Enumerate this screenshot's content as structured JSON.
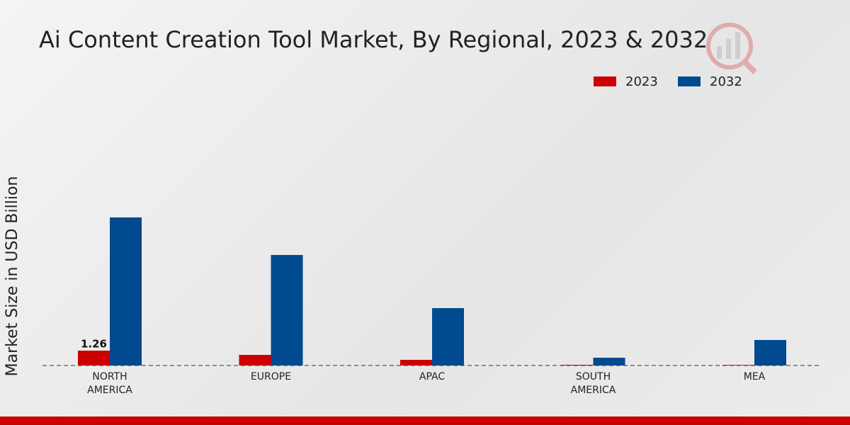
{
  "chart_data": {
    "type": "bar",
    "title": "Ai Content Creation Tool Market, By Regional, 2023 & 2032",
    "y_label": "Market Size in USD Billion",
    "categories": [
      "NORTH AMERICA",
      "EUROPE",
      "APAC",
      "SOUTH AMERICA",
      "MEA"
    ],
    "series": [
      {
        "name": "2023",
        "color": "#cc0000",
        "values": [
          1.26,
          0.9,
          0.48,
          0.06,
          0.05
        ],
        "value_labels": [
          "1.26",
          null,
          null,
          null,
          null
        ]
      },
      {
        "name": "2032",
        "color": "#004a8f",
        "values": [
          12.54,
          9.36,
          4.86,
          0.66,
          2.16
        ]
      }
    ]
  }
}
